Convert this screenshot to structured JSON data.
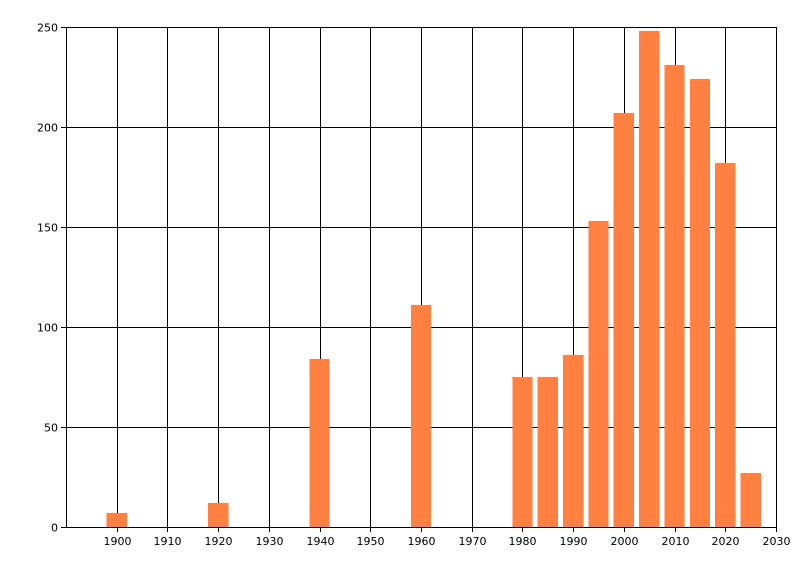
{
  "chart_data": {
    "type": "bar",
    "title": "",
    "xlabel": "",
    "ylabel": "",
    "xlim": [
      1890,
      2030
    ],
    "ylim": [
      0,
      250
    ],
    "grid": true,
    "bar_color": "#FF8040",
    "bar_width": 4,
    "x_ticks": [
      "1900",
      "1910",
      "1920",
      "1930",
      "1940",
      "1950",
      "1960",
      "1970",
      "1980",
      "1990",
      "2000",
      "2010",
      "2020",
      "2030"
    ],
    "y_ticks": [
      "0",
      "50",
      "100",
      "150",
      "200",
      "250"
    ],
    "series": [
      {
        "values": [
          {
            "x": 1900,
            "y": 7
          },
          {
            "x": 1920,
            "y": 12
          },
          {
            "x": 1940,
            "y": 84
          },
          {
            "x": 1960,
            "y": 111
          },
          {
            "x": 1980,
            "y": 75
          },
          {
            "x": 1985,
            "y": 75
          },
          {
            "x": 1990,
            "y": 86
          },
          {
            "x": 1995,
            "y": 153
          },
          {
            "x": 2000,
            "y": 207
          },
          {
            "x": 2005,
            "y": 248
          },
          {
            "x": 2010,
            "y": 231
          },
          {
            "x": 2015,
            "y": 224
          },
          {
            "x": 2020,
            "y": 182
          },
          {
            "x": 2025,
            "y": 27
          }
        ]
      }
    ]
  }
}
